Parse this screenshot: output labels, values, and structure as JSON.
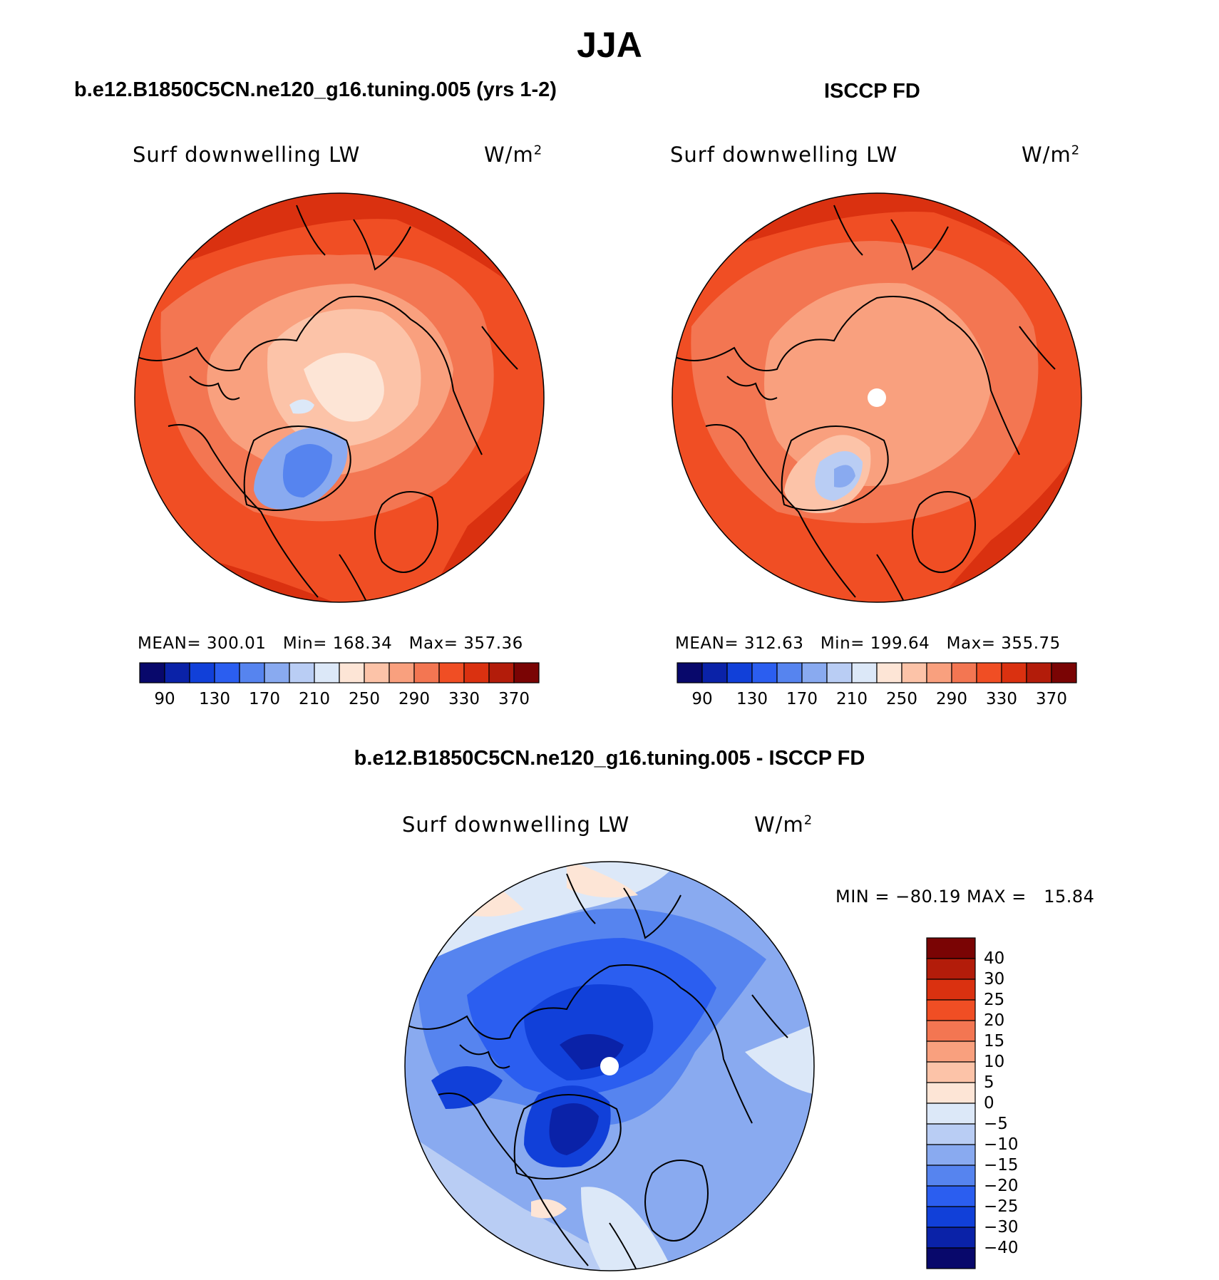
{
  "figure": {
    "season": "JJA"
  },
  "panels": {
    "model": {
      "title": "b.e12.B1850C5CN.ne120_g16.tuning.005 (yrs 1-2)",
      "variable": "Surf downwelling LW",
      "units": "W/m",
      "units_sup": "2",
      "mean_label": "MEAN=",
      "mean": "300.01",
      "min_label": "Min=",
      "min": "168.34",
      "max_label": "Max=",
      "max": "357.36"
    },
    "obs": {
      "title": "ISCCP FD",
      "variable": "Surf downwelling LW",
      "units": "W/m",
      "units_sup": "2",
      "mean_label": "MEAN=",
      "mean": "312.63",
      "min_label": "Min=",
      "min": "199.64",
      "max_label": "Max=",
      "max": "355.75"
    },
    "diff": {
      "title": "b.e12.B1850C5CN.ne120_g16.tuning.005 - ISCCP FD",
      "variable": "Surf downwelling LW",
      "units": "W/m",
      "units_sup": "2",
      "minmax_text": "MIN = −80.19 MAX =   15.84"
    }
  },
  "colorbars": {
    "absolute": {
      "tick_labels": [
        "90",
        "130",
        "170",
        "210",
        "250",
        "290",
        "330",
        "370"
      ],
      "colors": [
        "#08086b",
        "#0a22a8",
        "#1140d9",
        "#2b5ef0",
        "#5684ef",
        "#89aaf0",
        "#b9cdf4",
        "#dce8f8",
        "#fde5d6",
        "#fcc3a8",
        "#f9a07e",
        "#f37652",
        "#f04e24",
        "#da3110",
        "#b31c0a",
        "#7a0404"
      ]
    },
    "difference": {
      "tick_labels": [
        "40",
        "30",
        "25",
        "20",
        "15",
        "10",
        "5",
        "0",
        "−5",
        "−10",
        "−15",
        "−20",
        "−25",
        "−30",
        "−40"
      ],
      "colors": [
        "#7a0404",
        "#b31c0a",
        "#da3110",
        "#f04e24",
        "#f37652",
        "#f9a07e",
        "#fcc3a8",
        "#fde5d6",
        "#dce8f8",
        "#b9cdf4",
        "#89aaf0",
        "#5684ef",
        "#2b5ef0",
        "#1140d9",
        "#0a22a8",
        "#08086b"
      ]
    }
  }
}
